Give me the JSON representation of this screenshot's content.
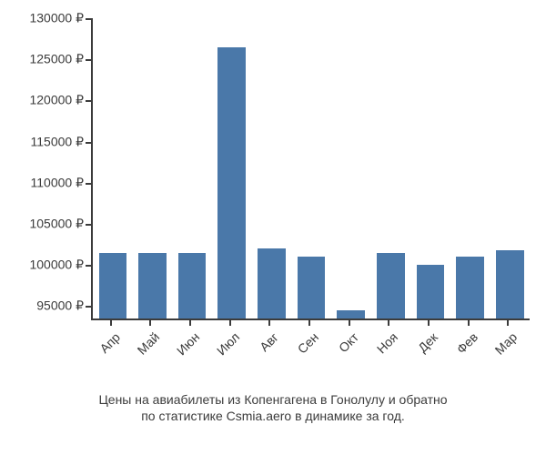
{
  "chart": {
    "type": "bar",
    "categories": [
      "Апр",
      "Май",
      "Июн",
      "Июл",
      "Авг",
      "Сен",
      "Окт",
      "Ноя",
      "Дек",
      "Фев",
      "Мар"
    ],
    "values": [
      101500,
      101500,
      101500,
      126500,
      102000,
      101000,
      94500,
      101500,
      100000,
      101000,
      101800
    ],
    "bar_color": "#4a78a9",
    "axis_color": "#3b3b3b",
    "tick_color": "#3b3b3b",
    "background_color": "#ffffff",
    "text_color": "#3b3b3b",
    "ylim": [
      93500,
      130000
    ],
    "yticks": [
      95000,
      100000,
      105000,
      110000,
      115000,
      120000,
      125000,
      130000
    ],
    "y_suffix": " ₽",
    "bar_width": 0.7,
    "tick_fontsize": 14,
    "caption_fontsize": 14,
    "caption_line1": "Цены на авиабилеты из Копенгагена в Гонолулу и обратно",
    "caption_line2": "по статистике Csmia.aero в динамике за год."
  }
}
